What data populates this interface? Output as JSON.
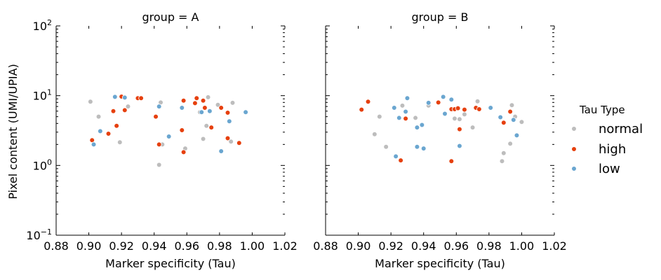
{
  "colors": {
    "normal": "#bdbdbd",
    "high": "#e6400e",
    "low": "#6aa6d0"
  },
  "legend": {
    "title": "Tau Type",
    "entries": [
      {
        "key": "normal",
        "label": "normal"
      },
      {
        "key": "high",
        "label": "high"
      },
      {
        "key": "low",
        "label": "low"
      }
    ]
  },
  "chart_data": {
    "type": "scatter",
    "xlabel": "Marker specificity (Tau)",
    "ylabel": "Pixel content (UMI/UPIA)",
    "xlim": [
      0.88,
      1.02
    ],
    "xticks": [
      0.88,
      0.9,
      0.92,
      0.94,
      0.96,
      0.98,
      1.0,
      1.02
    ],
    "xtick_labels": [
      "0.88",
      "0.90",
      "0.92",
      "0.94",
      "0.96",
      "0.98",
      "1.00",
      "1.02"
    ],
    "yscale": "log",
    "ylim": [
      0.1,
      100
    ],
    "yticks": [
      0.1,
      1,
      10,
      100
    ],
    "ytick_labels": [
      {
        "base": "10",
        "exp": "−1"
      },
      {
        "base": "10",
        "exp": "0"
      },
      {
        "base": "10",
        "exp": "1"
      },
      {
        "base": "10",
        "exp": "2"
      }
    ],
    "grid": false,
    "legend_position": "right",
    "panels": [
      {
        "title": "group = A",
        "points": [
          {
            "x": 0.901,
            "y": 8.2,
            "type": "normal"
          },
          {
            "x": 0.906,
            "y": 5.0,
            "type": "normal"
          },
          {
            "x": 0.919,
            "y": 2.15,
            "type": "normal"
          },
          {
            "x": 0.924,
            "y": 7.0,
            "type": "normal"
          },
          {
            "x": 0.943,
            "y": 1.02,
            "type": "normal"
          },
          {
            "x": 0.944,
            "y": 8.0,
            "type": "normal"
          },
          {
            "x": 0.945,
            "y": 2.0,
            "type": "normal"
          },
          {
            "x": 0.959,
            "y": 1.75,
            "type": "normal"
          },
          {
            "x": 0.968,
            "y": 5.8,
            "type": "normal"
          },
          {
            "x": 0.97,
            "y": 2.4,
            "type": "normal"
          },
          {
            "x": 0.972,
            "y": 3.7,
            "type": "normal"
          },
          {
            "x": 0.973,
            "y": 9.5,
            "type": "normal"
          },
          {
            "x": 0.979,
            "y": 7.4,
            "type": "normal"
          },
          {
            "x": 0.987,
            "y": 2.2,
            "type": "normal"
          },
          {
            "x": 0.988,
            "y": 7.9,
            "type": "normal"
          },
          {
            "x": 0.902,
            "y": 2.3,
            "type": "high"
          },
          {
            "x": 0.912,
            "y": 2.85,
            "type": "high"
          },
          {
            "x": 0.915,
            "y": 6.0,
            "type": "high"
          },
          {
            "x": 0.917,
            "y": 3.7,
            "type": "high"
          },
          {
            "x": 0.92,
            "y": 9.7,
            "type": "high"
          },
          {
            "x": 0.922,
            "y": 6.2,
            "type": "high"
          },
          {
            "x": 0.93,
            "y": 9.2,
            "type": "high"
          },
          {
            "x": 0.932,
            "y": 9.2,
            "type": "high"
          },
          {
            "x": 0.941,
            "y": 5.0,
            "type": "high"
          },
          {
            "x": 0.943,
            "y": 2.0,
            "type": "high"
          },
          {
            "x": 0.957,
            "y": 3.2,
            "type": "high"
          },
          {
            "x": 0.958,
            "y": 1.55,
            "type": "high"
          },
          {
            "x": 0.958,
            "y": 8.5,
            "type": "high"
          },
          {
            "x": 0.965,
            "y": 7.8,
            "type": "high"
          },
          {
            "x": 0.966,
            "y": 9.2,
            "type": "high"
          },
          {
            "x": 0.97,
            "y": 8.5,
            "type": "high"
          },
          {
            "x": 0.971,
            "y": 6.7,
            "type": "high"
          },
          {
            "x": 0.975,
            "y": 3.5,
            "type": "high"
          },
          {
            "x": 0.981,
            "y": 6.7,
            "type": "high"
          },
          {
            "x": 0.985,
            "y": 5.7,
            "type": "high"
          },
          {
            "x": 0.985,
            "y": 2.45,
            "type": "high"
          },
          {
            "x": 0.992,
            "y": 2.1,
            "type": "high"
          },
          {
            "x": 0.903,
            "y": 2.0,
            "type": "low"
          },
          {
            "x": 0.907,
            "y": 3.1,
            "type": "low"
          },
          {
            "x": 0.916,
            "y": 9.6,
            "type": "low"
          },
          {
            "x": 0.922,
            "y": 9.4,
            "type": "low"
          },
          {
            "x": 0.943,
            "y": 7.0,
            "type": "low"
          },
          {
            "x": 0.949,
            "y": 2.6,
            "type": "low"
          },
          {
            "x": 0.957,
            "y": 6.7,
            "type": "low"
          },
          {
            "x": 0.969,
            "y": 5.8,
            "type": "low"
          },
          {
            "x": 0.974,
            "y": 6.0,
            "type": "low"
          },
          {
            "x": 0.981,
            "y": 1.6,
            "type": "low"
          },
          {
            "x": 0.986,
            "y": 4.3,
            "type": "low"
          },
          {
            "x": 0.996,
            "y": 5.8,
            "type": "low"
          }
        ]
      },
      {
        "title": "group = B",
        "points": [
          {
            "x": 0.91,
            "y": 2.8,
            "type": "normal"
          },
          {
            "x": 0.913,
            "y": 5.0,
            "type": "normal"
          },
          {
            "x": 0.917,
            "y": 1.85,
            "type": "normal"
          },
          {
            "x": 0.927,
            "y": 7.2,
            "type": "normal"
          },
          {
            "x": 0.935,
            "y": 4.8,
            "type": "normal"
          },
          {
            "x": 0.943,
            "y": 7.2,
            "type": "normal"
          },
          {
            "x": 0.959,
            "y": 4.7,
            "type": "normal"
          },
          {
            "x": 0.962,
            "y": 4.6,
            "type": "normal"
          },
          {
            "x": 0.965,
            "y": 5.4,
            "type": "normal"
          },
          {
            "x": 0.97,
            "y": 3.5,
            "type": "normal"
          },
          {
            "x": 0.973,
            "y": 8.3,
            "type": "normal"
          },
          {
            "x": 0.988,
            "y": 1.15,
            "type": "normal"
          },
          {
            "x": 0.989,
            "y": 1.5,
            "type": "normal"
          },
          {
            "x": 0.993,
            "y": 2.05,
            "type": "normal"
          },
          {
            "x": 0.994,
            "y": 7.3,
            "type": "normal"
          },
          {
            "x": 0.996,
            "y": 5.0,
            "type": "normal"
          },
          {
            "x": 1.0,
            "y": 4.2,
            "type": "normal"
          },
          {
            "x": 0.902,
            "y": 6.3,
            "type": "high"
          },
          {
            "x": 0.906,
            "y": 8.2,
            "type": "high"
          },
          {
            "x": 0.926,
            "y": 1.18,
            "type": "high"
          },
          {
            "x": 0.929,
            "y": 4.7,
            "type": "high"
          },
          {
            "x": 0.949,
            "y": 8.0,
            "type": "high"
          },
          {
            "x": 0.957,
            "y": 1.15,
            "type": "high"
          },
          {
            "x": 0.957,
            "y": 6.4,
            "type": "high"
          },
          {
            "x": 0.959,
            "y": 6.4,
            "type": "high"
          },
          {
            "x": 0.961,
            "y": 6.6,
            "type": "high"
          },
          {
            "x": 0.962,
            "y": 3.3,
            "type": "high"
          },
          {
            "x": 0.965,
            "y": 6.3,
            "type": "high"
          },
          {
            "x": 0.972,
            "y": 6.7,
            "type": "high"
          },
          {
            "x": 0.974,
            "y": 6.4,
            "type": "high"
          },
          {
            "x": 0.989,
            "y": 4.1,
            "type": "high"
          },
          {
            "x": 0.993,
            "y": 5.9,
            "type": "high"
          },
          {
            "x": 0.922,
            "y": 6.7,
            "type": "low"
          },
          {
            "x": 0.923,
            "y": 1.35,
            "type": "low"
          },
          {
            "x": 0.925,
            "y": 4.8,
            "type": "low"
          },
          {
            "x": 0.929,
            "y": 5.9,
            "type": "low"
          },
          {
            "x": 0.93,
            "y": 9.2,
            "type": "low"
          },
          {
            "x": 0.936,
            "y": 3.5,
            "type": "low"
          },
          {
            "x": 0.936,
            "y": 1.85,
            "type": "low"
          },
          {
            "x": 0.939,
            "y": 3.8,
            "type": "low"
          },
          {
            "x": 0.94,
            "y": 1.75,
            "type": "low"
          },
          {
            "x": 0.943,
            "y": 7.9,
            "type": "low"
          },
          {
            "x": 0.952,
            "y": 9.6,
            "type": "low"
          },
          {
            "x": 0.953,
            "y": 5.5,
            "type": "low"
          },
          {
            "x": 0.957,
            "y": 8.8,
            "type": "low"
          },
          {
            "x": 0.962,
            "y": 1.9,
            "type": "low"
          },
          {
            "x": 0.981,
            "y": 6.7,
            "type": "low"
          },
          {
            "x": 0.987,
            "y": 4.9,
            "type": "low"
          },
          {
            "x": 0.995,
            "y": 4.5,
            "type": "low"
          },
          {
            "x": 0.997,
            "y": 2.7,
            "type": "low"
          }
        ]
      }
    ]
  }
}
